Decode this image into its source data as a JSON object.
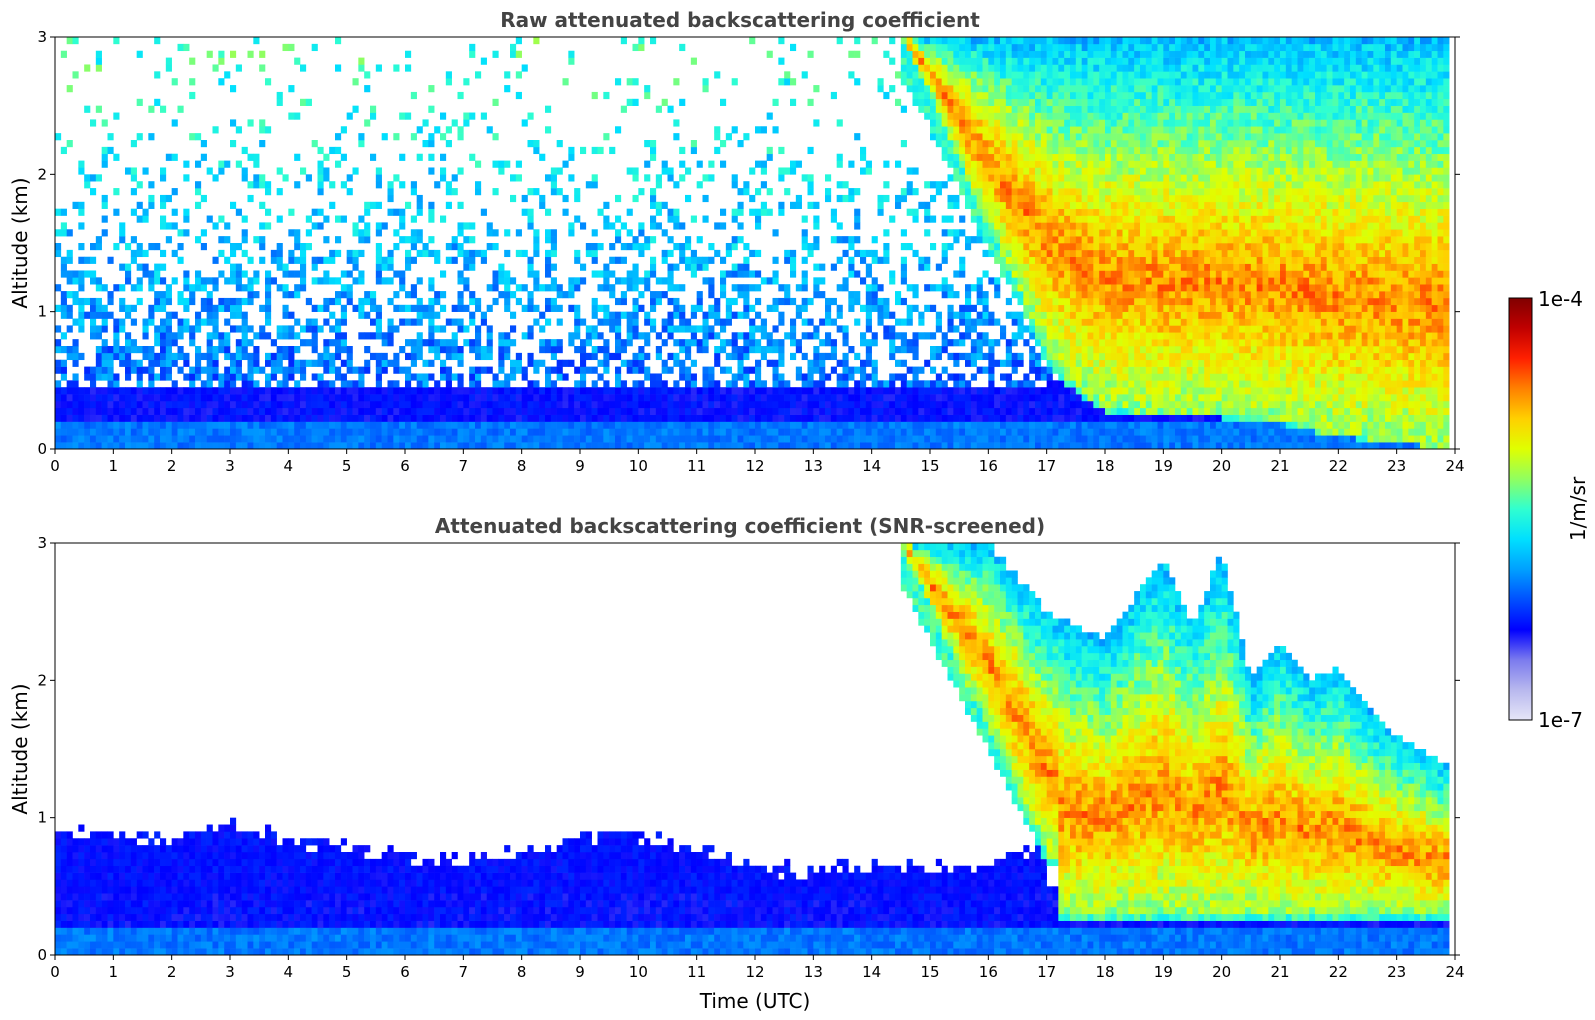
{
  "chart_data": [
    {
      "type": "heatmap",
      "title": "Raw attenuated backscattering coefficient",
      "xlabel": "",
      "ylabel": "Altitude (km)",
      "xlim": [
        0,
        24
      ],
      "ylim": [
        0,
        3
      ],
      "x_ticks": [
        "0",
        "1",
        "2",
        "3",
        "4",
        "5",
        "6",
        "7",
        "8",
        "9",
        "10",
        "11",
        "12",
        "13",
        "14",
        "15",
        "16",
        "17",
        "18",
        "19",
        "20",
        "21",
        "22",
        "23",
        "24"
      ],
      "y_ticks": [
        "0",
        "1",
        "2",
        "3"
      ],
      "screened": false,
      "cloud_base_km": {
        "hours": [
          14.5,
          15,
          15.5,
          16,
          16.5,
          17,
          17.5,
          18,
          19,
          20,
          21,
          22,
          23,
          23.8
        ],
        "values": [
          3.0,
          2.6,
          2.1,
          1.6,
          1.2,
          0.7,
          0.45,
          0.3,
          0.25,
          0.25,
          0.2,
          0.1,
          0.05,
          0.0
        ]
      },
      "cloud_top_km": 3.0,
      "noise_level": "high",
      "note_items": []
    },
    {
      "type": "heatmap",
      "title": "Attenuated backscattering coefficient (SNR-screened)",
      "xlabel": "Time (UTC)",
      "ylabel": "Altitude (km)",
      "xlim": [
        0,
        24
      ],
      "ylim": [
        0,
        3
      ],
      "x_ticks": [
        "0",
        "1",
        "2",
        "3",
        "4",
        "5",
        "6",
        "7",
        "8",
        "9",
        "10",
        "11",
        "12",
        "13",
        "14",
        "15",
        "16",
        "17",
        "18",
        "19",
        "20",
        "21",
        "22",
        "23",
        "24"
      ],
      "y_ticks": [
        "0",
        "1",
        "2",
        "3"
      ],
      "screened": true,
      "boundary_layer_top_km": {
        "hours": [
          0,
          1,
          2,
          3,
          4,
          5,
          6,
          7,
          8,
          9,
          9.5,
          10,
          11,
          12,
          13,
          14,
          15,
          16,
          16.8
        ],
        "values": [
          0.95,
          0.85,
          0.85,
          0.95,
          0.85,
          0.8,
          0.7,
          0.7,
          0.75,
          0.85,
          0.9,
          0.85,
          0.8,
          0.65,
          0.6,
          0.65,
          0.65,
          0.65,
          0.8
        ]
      },
      "cloud_top_km": {
        "hours": [
          14.5,
          16,
          17,
          18,
          18.5,
          19,
          19.5,
          20,
          20.5,
          21,
          21.5,
          22,
          22.5,
          23,
          23.8
        ],
        "values": [
          3.0,
          3.0,
          2.5,
          2.3,
          2.6,
          2.9,
          2.4,
          2.95,
          2.0,
          2.3,
          2.0,
          2.1,
          1.8,
          1.6,
          1.4
        ]
      },
      "colorbar": {
        "label": "1/m/sr",
        "min_label": "1e-7",
        "max_label": "1e-4",
        "scale": "log",
        "range": [
          1e-07,
          0.0001
        ],
        "colors": [
          "#e6e6f8",
          "#b8b8ee",
          "#7a7aee",
          "#0000ff",
          "#0050ff",
          "#00a0ff",
          "#00e0ff",
          "#30ffd0",
          "#90ff60",
          "#e0ff00",
          "#ffd000",
          "#ff8000",
          "#ff2000",
          "#c00000",
          "#800000"
        ]
      }
    }
  ]
}
